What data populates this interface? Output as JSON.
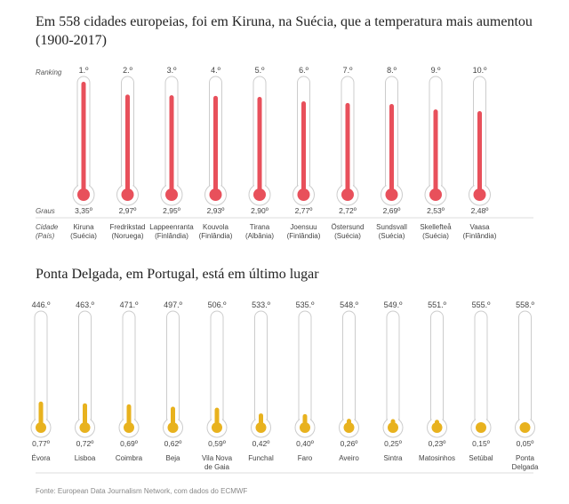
{
  "title1": "Em 558 cidades europeias, foi em Kiruna, na Suécia, que a temperatura mais aumentou (1900-2017)",
  "title2": "Ponta Delgada, em Portugal, está em último lugar",
  "labels": {
    "ranking": "Ranking",
    "graus": "Graus",
    "cidade": "Cidade",
    "pais": "(País)"
  },
  "source": "Fonte: European Data Journalism Network, com dados do ECMWF",
  "colors": {
    "top": "#e8505b",
    "bottom": "#e8b21e",
    "outline": "#cccccc",
    "text": "#444444"
  },
  "chart_data": [
    {
      "type": "bar",
      "title": "Em 558 cidades europeias, foi em Kiruna, na Suécia, que a temperatura mais aumentou (1900-2017)",
      "ylabel": "Graus",
      "ylim": [
        0,
        3.6
      ],
      "rankings": [
        "1.º",
        "2.º",
        "3.º",
        "4.º",
        "5.º",
        "6.º",
        "7.º",
        "8.º",
        "9.º",
        "10.º"
      ],
      "categories": [
        "Kiruna",
        "Fredrikstad",
        "Lappeenranta",
        "Kouvola",
        "Tirana",
        "Joensuu",
        "Östersund",
        "Sundsvall",
        "Skellefteå",
        "Vaasa"
      ],
      "countries": [
        "(Suécia)",
        "(Noruega)",
        "(Finlândia)",
        "(Finlândia)",
        "(Albânia)",
        "(Finlândia)",
        "(Suécia)",
        "(Suécia)",
        "(Suécia)",
        "(Finlândia)"
      ],
      "values": [
        3.35,
        2.97,
        2.95,
        2.93,
        2.9,
        2.77,
        2.72,
        2.69,
        2.53,
        2.48
      ],
      "value_labels": [
        "3,35º",
        "2,97º",
        "2,95º",
        "2,93º",
        "2,90º",
        "2,77º",
        "2,72º",
        "2,69º",
        "2,53º",
        "2,48º"
      ]
    },
    {
      "type": "bar",
      "title": "Ponta Delgada, em Portugal, está em último lugar",
      "ylabel": "Graus",
      "ylim": [
        0,
        3.6
      ],
      "rankings": [
        "446.º",
        "463.º",
        "471.º",
        "497.º",
        "506.º",
        "533.º",
        "535.º",
        "548.º",
        "549.º",
        "551.º",
        "555.º",
        "558.º"
      ],
      "categories": [
        "Évora",
        "Lisboa",
        "Coimbra",
        "Beja",
        "Vila Nova de Gaia",
        "Funchal",
        "Faro",
        "Aveiro",
        "Sintra",
        "Matosinhos",
        "Setúbal",
        "Ponta Delgada"
      ],
      "values": [
        0.77,
        0.72,
        0.69,
        0.62,
        0.59,
        0.42,
        0.4,
        0.26,
        0.25,
        0.23,
        0.15,
        0.05
      ],
      "value_labels": [
        "0,77º",
        "0,72º",
        "0,69º",
        "0,62º",
        "0,59º",
        "0,42º",
        "0,40º",
        "0,26º",
        "0,25º",
        "0,23º",
        "0,15º",
        "0,05º"
      ]
    }
  ]
}
